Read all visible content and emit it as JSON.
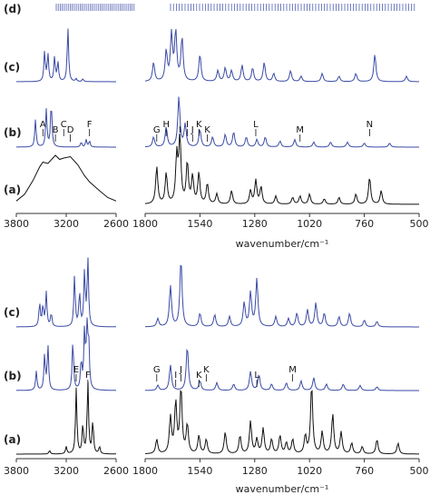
{
  "colors": {
    "calc": "#3a4aa5",
    "expt": "#111111",
    "axis": "#333333"
  },
  "panels": [
    {
      "id": "top",
      "row_labels": [
        "(d)",
        "(c)",
        "(b)",
        "(a)"
      ],
      "x_axis_label": "wavenumber/cm⁻¹",
      "left_x_range": [
        3800,
        2600
      ],
      "right_x_range": [
        1800,
        500
      ],
      "left_ticks": [
        "3800",
        "3200",
        "2600"
      ],
      "right_ticks": [
        "1800",
        "1540",
        "1280",
        "1020",
        "760",
        "500"
      ],
      "annotations": [
        {
          "label": "A",
          "x": 3480
        },
        {
          "label": "B",
          "x": 3330
        },
        {
          "label": "C",
          "x": 3230
        },
        {
          "label": "D",
          "x": 3150
        },
        {
          "label": "F",
          "x": 2920
        },
        {
          "label": "G",
          "x": 1745
        },
        {
          "label": "H",
          "x": 1700
        },
        {
          "label": "I",
          "x": 1635
        },
        {
          "label": "I",
          "x": 1600
        },
        {
          "label": "J",
          "x": 1575
        },
        {
          "label": "K",
          "x": 1545
        },
        {
          "label": "K",
          "x": 1505
        },
        {
          "label": "L",
          "x": 1275
        },
        {
          "label": "M",
          "x": 1065
        },
        {
          "label": "N",
          "x": 735
        }
      ]
    },
    {
      "id": "bottom",
      "row_labels": [
        "(c)",
        "(b)",
        "(a)"
      ],
      "x_axis_label": "wavenumber/cm⁻¹",
      "left_x_range": [
        3800,
        2600
      ],
      "right_x_range": [
        1800,
        500
      ],
      "left_ticks": [
        "3800",
        "3200",
        "2600"
      ],
      "right_ticks": [
        "1800",
        "1540",
        "1280",
        "1020",
        "760",
        "500"
      ],
      "annotations": [
        {
          "label": "E",
          "x": 3080
        },
        {
          "label": "F",
          "x": 2940
        },
        {
          "label": "G",
          "x": 1745
        },
        {
          "label": "I",
          "x": 1655
        },
        {
          "label": "J",
          "x": 1630
        },
        {
          "label": "K",
          "x": 1545
        },
        {
          "label": "K",
          "x": 1510
        },
        {
          "label": "L",
          "x": 1270
        },
        {
          "label": "M",
          "x": 1100
        }
      ]
    }
  ],
  "chart_data": [
    {
      "type": "line",
      "panel": "top",
      "xlabel": "wavenumber/cm⁻¹",
      "series": [
        {
          "row": "(d)",
          "kind": "stick",
          "left_sticks": [],
          "right_sticks": []
        },
        {
          "row": "(c)",
          "kind": "calc",
          "left_peaks": [
            [
              3460,
              0.55
            ],
            [
              3420,
              0.5
            ],
            [
              3340,
              0.45
            ],
            [
              3300,
              0.35
            ],
            [
              3180,
              1.0
            ],
            [
              3080,
              0.05
            ],
            [
              3000,
              0.05
            ]
          ],
          "right_peaks": [
            [
              1760,
              0.35
            ],
            [
              1700,
              0.55
            ],
            [
              1675,
              0.85
            ],
            [
              1655,
              0.9
            ],
            [
              1625,
              0.8
            ],
            [
              1540,
              0.5
            ],
            [
              1455,
              0.2
            ],
            [
              1420,
              0.25
            ],
            [
              1390,
              0.2
            ],
            [
              1340,
              0.3
            ],
            [
              1290,
              0.25
            ],
            [
              1235,
              0.35
            ],
            [
              1190,
              0.15
            ],
            [
              1110,
              0.2
            ],
            [
              1060,
              0.1
            ],
            [
              960,
              0.15
            ],
            [
              880,
              0.1
            ],
            [
              800,
              0.15
            ],
            [
              710,
              0.5
            ],
            [
              560,
              0.1
            ]
          ]
        },
        {
          "row": "(b)",
          "kind": "calc",
          "left_peaks": [
            [
              3570,
              0.55
            ],
            [
              3440,
              0.75
            ],
            [
              3380,
              0.9
            ],
            [
              3020,
              0.1
            ],
            [
              2960,
              0.15
            ],
            [
              2920,
              0.12
            ]
          ],
          "right_peaks": [
            [
              1760,
              0.2
            ],
            [
              1700,
              0.4
            ],
            [
              1640,
              1.0
            ],
            [
              1610,
              0.45
            ],
            [
              1540,
              0.35
            ],
            [
              1480,
              0.2
            ],
            [
              1420,
              0.25
            ],
            [
              1380,
              0.3
            ],
            [
              1320,
              0.2
            ],
            [
              1270,
              0.15
            ],
            [
              1230,
              0.2
            ],
            [
              1160,
              0.12
            ],
            [
              1090,
              0.15
            ],
            [
              1000,
              0.1
            ],
            [
              920,
              0.1
            ],
            [
              840,
              0.1
            ],
            [
              760,
              0.08
            ],
            [
              640,
              0.08
            ]
          ]
        },
        {
          "row": "(a)",
          "kind": "expt",
          "left_profile": [
            [
              3800,
              0.05
            ],
            [
              3700,
              0.15
            ],
            [
              3600,
              0.35
            ],
            [
              3520,
              0.55
            ],
            [
              3480,
              0.62
            ],
            [
              3420,
              0.6
            ],
            [
              3330,
              0.72
            ],
            [
              3280,
              0.66
            ],
            [
              3230,
              0.68
            ],
            [
              3150,
              0.7
            ],
            [
              3060,
              0.58
            ],
            [
              2980,
              0.42
            ],
            [
              2920,
              0.33
            ],
            [
              2800,
              0.2
            ],
            [
              2700,
              0.1
            ],
            [
              2600,
              0.05
            ]
          ],
          "right_peaks": [
            [
              1745,
              0.55
            ],
            [
              1700,
              0.45
            ],
            [
              1650,
              0.7
            ],
            [
              1635,
              0.95
            ],
            [
              1600,
              0.6
            ],
            [
              1575,
              0.4
            ],
            [
              1545,
              0.45
            ],
            [
              1505,
              0.3
            ],
            [
              1460,
              0.15
            ],
            [
              1390,
              0.2
            ],
            [
              1300,
              0.2
            ],
            [
              1275,
              0.35
            ],
            [
              1250,
              0.25
            ],
            [
              1180,
              0.12
            ],
            [
              1100,
              0.1
            ],
            [
              1065,
              0.12
            ],
            [
              1020,
              0.15
            ],
            [
              950,
              0.08
            ],
            [
              880,
              0.1
            ],
            [
              800,
              0.15
            ],
            [
              735,
              0.4
            ],
            [
              680,
              0.2
            ]
          ]
        }
      ]
    },
    {
      "type": "line",
      "panel": "bottom",
      "xlabel": "wavenumber/cm⁻¹",
      "series": [
        {
          "row": "(c)",
          "kind": "calc",
          "left_peaks": [
            [
              3520,
              0.35
            ],
            [
              3480,
              0.3
            ],
            [
              3440,
              0.5
            ],
            [
              3380,
              0.2
            ],
            [
              3100,
              0.75
            ],
            [
              3040,
              0.5
            ],
            [
              2980,
              0.8
            ],
            [
              2940,
              1.0
            ]
          ],
          "right_peaks": [
            [
              1740,
              0.12
            ],
            [
              1680,
              0.6
            ],
            [
              1630,
              1.0
            ],
            [
              1540,
              0.2
            ],
            [
              1470,
              0.18
            ],
            [
              1400,
              0.15
            ],
            [
              1330,
              0.35
            ],
            [
              1300,
              0.5
            ],
            [
              1270,
              0.7
            ],
            [
              1180,
              0.15
            ],
            [
              1120,
              0.12
            ],
            [
              1080,
              0.2
            ],
            [
              1030,
              0.25
            ],
            [
              990,
              0.35
            ],
            [
              950,
              0.2
            ],
            [
              880,
              0.15
            ],
            [
              830,
              0.2
            ],
            [
              760,
              0.1
            ],
            [
              700,
              0.08
            ]
          ]
        },
        {
          "row": "(b)",
          "kind": "calc",
          "left_peaks": [
            [
              3560,
              0.3
            ],
            [
              3460,
              0.55
            ],
            [
              3420,
              0.7
            ],
            [
              3120,
              0.8
            ],
            [
              3020,
              0.45
            ],
            [
              2980,
              0.9
            ],
            [
              2950,
              1.0
            ],
            [
              2930,
              0.7
            ]
          ],
          "right_peaks": [
            [
              1740,
              0.08
            ],
            [
              1680,
              0.4
            ],
            [
              1600,
              0.7
            ],
            [
              1540,
              0.15
            ],
            [
              1460,
              0.12
            ],
            [
              1380,
              0.1
            ],
            [
              1300,
              0.3
            ],
            [
              1260,
              0.25
            ],
            [
              1200,
              0.1
            ],
            [
              1130,
              0.12
            ],
            [
              1060,
              0.15
            ],
            [
              1000,
              0.2
            ],
            [
              940,
              0.1
            ],
            [
              860,
              0.1
            ],
            [
              780,
              0.08
            ],
            [
              700,
              0.06
            ]
          ]
        },
        {
          "row": "(a)",
          "kind": "expt",
          "left_peaks": [
            [
              3400,
              0.05
            ],
            [
              3200,
              0.1
            ],
            [
              3080,
              0.9
            ],
            [
              3000,
              0.4
            ],
            [
              2940,
              1.0
            ],
            [
              2880,
              0.45
            ],
            [
              2800,
              0.1
            ]
          ],
          "right_peaks": [
            [
              1745,
              0.2
            ],
            [
              1680,
              0.5
            ],
            [
              1655,
              0.7
            ],
            [
              1630,
              0.9
            ],
            [
              1600,
              0.4
            ],
            [
              1545,
              0.25
            ],
            [
              1510,
              0.2
            ],
            [
              1420,
              0.3
            ],
            [
              1350,
              0.25
            ],
            [
              1300,
              0.45
            ],
            [
              1270,
              0.2
            ],
            [
              1240,
              0.35
            ],
            [
              1200,
              0.2
            ],
            [
              1160,
              0.25
            ],
            [
              1130,
              0.15
            ],
            [
              1100,
              0.2
            ],
            [
              1040,
              0.25
            ],
            [
              1010,
              0.95
            ],
            [
              960,
              0.3
            ],
            [
              910,
              0.55
            ],
            [
              870,
              0.3
            ],
            [
              820,
              0.15
            ],
            [
              770,
              0.1
            ],
            [
              700,
              0.2
            ],
            [
              600,
              0.15
            ]
          ]
        }
      ]
    }
  ]
}
